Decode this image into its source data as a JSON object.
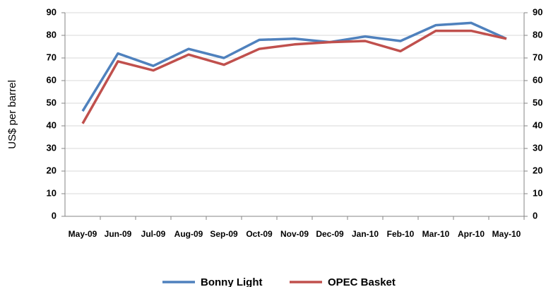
{
  "chart_data": {
    "type": "line",
    "y_label": "US$ per barrel",
    "categories": [
      "May-09",
      "Jun-09",
      "Jul-09",
      "Aug-09",
      "Sep-09",
      "Oct-09",
      "Nov-09",
      "Dec-09",
      "Jan-10",
      "Feb-10",
      "Mar-10",
      "Apr-10",
      "May-10"
    ],
    "series": [
      {
        "name": "Bonny Light",
        "color": "#4f81bd",
        "values": [
          46.5,
          72,
          66.5,
          74,
          70,
          78,
          78.5,
          77,
          79.5,
          77.5,
          84.5,
          85.5,
          78.5
        ]
      },
      {
        "name": "OPEC Basket",
        "color": "#c0504d",
        "values": [
          41,
          68.5,
          64.5,
          71.5,
          67,
          74,
          76,
          77,
          77.5,
          73,
          82,
          82,
          78.5
        ]
      }
    ],
    "ylim": [
      0,
      90
    ],
    "yticks": [
      0,
      10,
      20,
      30,
      40,
      50,
      60,
      70,
      80,
      90
    ],
    "y2lim": [
      0,
      90
    ],
    "y2ticks": [
      0,
      10,
      20,
      30,
      40,
      50,
      60,
      70,
      80,
      90
    ],
    "grid": true
  }
}
